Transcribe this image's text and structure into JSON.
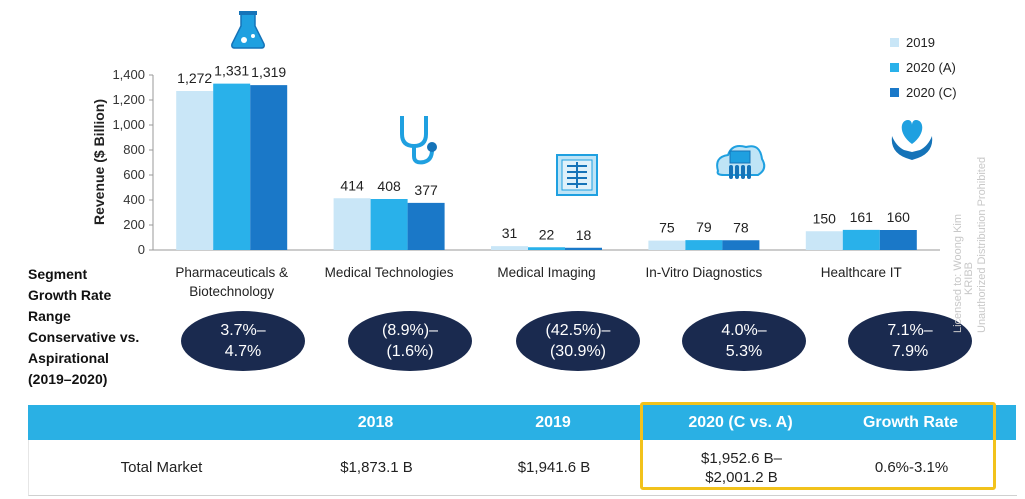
{
  "chart_data": {
    "type": "bar",
    "ylabel": "Revenue ($ Billion)",
    "ylim": [
      0,
      1400
    ],
    "yticks": [
      "0",
      "200",
      "400",
      "600",
      "800",
      "1,000",
      "1,200",
      "1,400"
    ],
    "categories": [
      "Pharmaceuticals & Biotechnology",
      "Medical Technologies",
      "Medical Imaging",
      "In-Vitro Diagnostics",
      "Healthcare IT"
    ],
    "category_lines": [
      [
        "Pharmaceuticals &",
        "Biotechnology"
      ],
      [
        "Medical Technologies"
      ],
      [
        "Medical Imaging"
      ],
      [
        "In-Vitro Diagnostics"
      ],
      [
        "Healthcare IT"
      ]
    ],
    "series": [
      {
        "name": "2019",
        "color": "#c9e6f7",
        "values": [
          1272,
          414,
          31,
          75,
          150
        ],
        "labels": [
          "1,272",
          "414",
          "31",
          "75",
          "150"
        ]
      },
      {
        "name": "2020 (A)",
        "color": "#29b1ea",
        "values": [
          1331,
          408,
          22,
          79,
          161
        ],
        "labels": [
          "1,331",
          "408",
          "22",
          "79",
          "161"
        ]
      },
      {
        "name": "2020 (C)",
        "color": "#1a78c8",
        "values": [
          1319,
          377,
          18,
          78,
          160
        ],
        "labels": [
          "1,319",
          "377",
          "18",
          "78",
          "160"
        ]
      }
    ],
    "icons": [
      "flask-icon",
      "stethoscope-icon",
      "xray-icon",
      "lab-device-icon",
      "heart-hands-icon"
    ]
  },
  "growth": {
    "label_lines": [
      "Segment",
      "Growth Rate",
      "Range",
      "Conservative vs.",
      "Aspirational",
      "(2019–2020)"
    ],
    "ranges": [
      [
        "3.7%–",
        "4.7%"
      ],
      [
        "(8.9%)–",
        "(1.6%)"
      ],
      [
        "(42.5%)–",
        "(30.9%)"
      ],
      [
        "4.0%–",
        "5.3%"
      ],
      [
        "7.1%–",
        "7.9%"
      ]
    ]
  },
  "watermark": {
    "line1": "Licensed to: Woong Kim",
    "line2": "KRIBB",
    "line3": "Unauthorized Distribution Prohibited"
  },
  "table": {
    "headers": [
      "",
      "2018",
      "2019",
      "2020 (C vs. A)",
      "Growth Rate"
    ],
    "row": {
      "label": "Total Market",
      "v2018": "$1,873.1 B",
      "v2019": "$1,941.6 B",
      "v2020_line1": "$1,952.6 B–",
      "v2020_line2": "$2,001.2 B",
      "growth": "0.6%-3.1%"
    },
    "highlight_color": "#f2c21b"
  }
}
